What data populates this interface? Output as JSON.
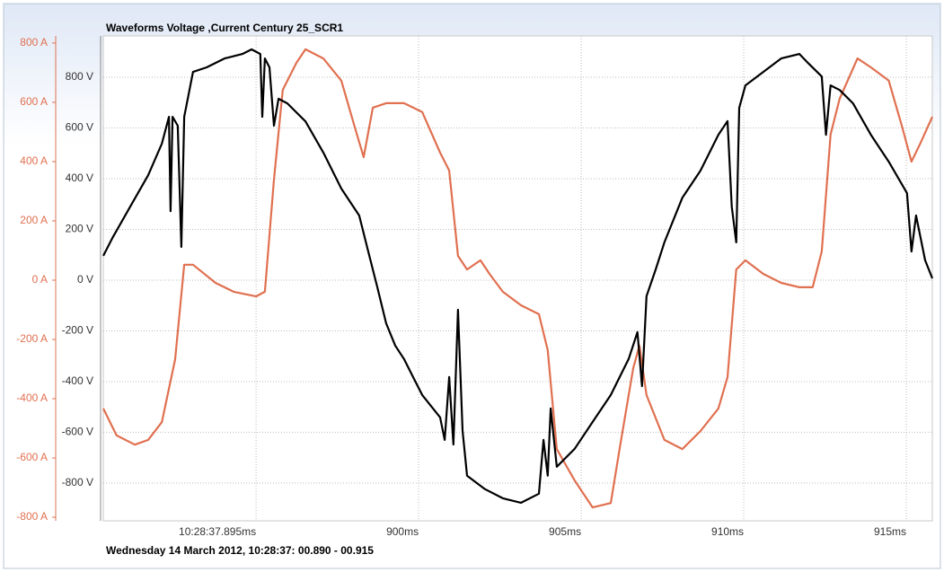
{
  "chart_data": {
    "type": "line",
    "title": "Waveforms Voltage ,Current Century 25_SCR1",
    "footer": "Wednesday 14 March 2012, 10:28:37: 00.890 - 00.915",
    "xlim": [
      890.3,
      915.8
    ],
    "xticks": [
      {
        "value": 895,
        "label": "10:28:37.895ms"
      },
      {
        "value": 900,
        "label": "900ms"
      },
      {
        "value": 905,
        "label": "905ms"
      },
      {
        "value": 910,
        "label": "910ms"
      },
      {
        "value": 915,
        "label": "915ms"
      }
    ],
    "ylim": [
      -812,
      824
    ],
    "yticks": [
      {
        "value": -800,
        "label": "-800 A"
      },
      {
        "value": -600,
        "label": "-600 A"
      },
      {
        "value": -400,
        "label": "-400 A"
      },
      {
        "value": -200,
        "label": "-200 A"
      },
      {
        "value": 0,
        "label": "0 A"
      },
      {
        "value": 200,
        "label": "200 A"
      },
      {
        "value": 400,
        "label": "400 A"
      },
      {
        "value": 600,
        "label": "600 A"
      },
      {
        "value": 800,
        "label": "800 A"
      }
    ],
    "y2lim": [
      -949,
      963
    ],
    "y2ticks": [
      {
        "value": -800,
        "label": "-800 V"
      },
      {
        "value": -600,
        "label": "-600 V"
      },
      {
        "value": -400,
        "label": "-400 V"
      },
      {
        "value": -200,
        "label": "-200 V"
      },
      {
        "value": 0,
        "label": "0 V"
      },
      {
        "value": 200,
        "label": "200 V"
      },
      {
        "value": 400,
        "label": "400 V"
      },
      {
        "value": 600,
        "label": "600 V"
      },
      {
        "value": 800,
        "label": "800 V"
      }
    ],
    "grid": true,
    "series": [
      {
        "color": "#e07050",
        "axis": "y",
        "x": [
          890.3,
          890.71,
          891.27,
          891.68,
          892.1,
          892.51,
          892.79,
          893.06,
          893.75,
          894.31,
          895.0,
          895.27,
          895.55,
          895.82,
          896.24,
          896.52,
          897.07,
          897.62,
          898.03,
          898.31,
          898.59,
          899.0,
          899.55,
          900.11,
          900.66,
          900.94,
          901.21,
          901.49,
          901.9,
          902.18,
          902.59,
          903.15,
          903.7,
          903.97,
          904.25,
          904.8,
          905.35,
          905.91,
          906.18,
          906.6,
          906.79,
          907.01,
          907.56,
          908.11,
          908.67,
          909.22,
          909.5,
          909.77,
          910.05,
          910.6,
          911.15,
          911.71,
          912.12,
          912.4,
          912.67,
          912.95,
          913.5,
          913.91,
          914.46,
          914.87,
          915.16,
          915.43,
          915.8
        ],
        "values": [
          -433,
          -524,
          -555,
          -539,
          -479,
          -267,
          52,
          52,
          -9,
          -39,
          -55,
          -39,
          339,
          642,
          733,
          779,
          748,
          673,
          518,
          415,
          582,
          597,
          597,
          567,
          430,
          370,
          82,
          36,
          67,
          21,
          -39,
          -85,
          -115,
          -236,
          -570,
          -676,
          -767,
          -752,
          -570,
          -297,
          -221,
          -388,
          -539,
          -570,
          -509,
          -433,
          -327,
          36,
          67,
          21,
          -9,
          -24,
          -24,
          97,
          491,
          612,
          748,
          718,
          673,
          518,
          400,
          461,
          551
        ]
      },
      {
        "color": "#000000",
        "axis": "y2",
        "x": [
          890.3,
          890.58,
          891.13,
          891.68,
          892.1,
          892.32,
          892.37,
          892.43,
          892.59,
          892.7,
          892.79,
          893.06,
          893.48,
          894.03,
          894.58,
          894.86,
          895.13,
          895.19,
          895.27,
          895.41,
          895.55,
          895.69,
          895.96,
          896.52,
          897.07,
          897.62,
          898.17,
          898.45,
          898.73,
          899.0,
          899.28,
          899.55,
          899.83,
          900.11,
          900.66,
          900.8,
          900.94,
          901.07,
          901.21,
          901.35,
          901.49,
          902.04,
          902.59,
          903.15,
          903.7,
          903.84,
          903.97,
          904.06,
          904.25,
          904.8,
          905.35,
          905.91,
          906.46,
          906.73,
          906.87,
          907.01,
          907.29,
          907.56,
          908.11,
          908.67,
          909.22,
          909.5,
          909.63,
          909.77,
          909.86,
          910.05,
          910.6,
          911.15,
          911.71,
          911.98,
          912.4,
          912.53,
          912.67,
          912.95,
          913.36,
          913.91,
          914.46,
          915.02,
          915.16,
          915.3,
          915.58,
          915.8
        ],
        "values": [
          96,
          166,
          290,
          414,
          538,
          644,
          272,
          644,
          609,
          131,
          644,
          821,
          839,
          874,
          892,
          910,
          892,
          644,
          874,
          839,
          609,
          715,
          697,
          626,
          503,
          361,
          255,
          113,
          -28,
          -170,
          -258,
          -311,
          -382,
          -453,
          -541,
          -630,
          -382,
          -648,
          -117,
          -594,
          -771,
          -824,
          -860,
          -878,
          -842,
          -630,
          -771,
          -506,
          -736,
          -665,
          -559,
          -453,
          -311,
          -205,
          -418,
          -63,
          42,
          149,
          325,
          432,
          573,
          627,
          290,
          149,
          679,
          768,
          821,
          874,
          892,
          856,
          803,
          573,
          768,
          750,
          697,
          573,
          467,
          343,
          113,
          255,
          78,
          7
        ]
      }
    ]
  }
}
